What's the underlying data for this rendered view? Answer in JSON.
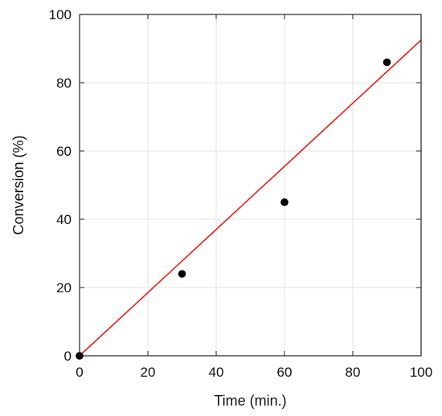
{
  "chart_data": {
    "type": "scatter",
    "xlabel": "Time (min.)",
    "ylabel": "Conversion (%)",
    "xlim": [
      0,
      100
    ],
    "ylim": [
      0,
      100
    ],
    "x_ticks": [
      0,
      20,
      40,
      60,
      80,
      100
    ],
    "y_ticks": [
      0,
      20,
      40,
      60,
      80,
      100
    ],
    "grid": true,
    "series": [
      {
        "type": "scatter",
        "color": "#000000",
        "points": [
          {
            "x": 0,
            "y": 0
          },
          {
            "x": 30,
            "y": 24
          },
          {
            "x": 60,
            "y": 45
          },
          {
            "x": 90,
            "y": 86
          }
        ]
      },
      {
        "type": "line",
        "color": "#e8201c",
        "points": [
          {
            "x": 0,
            "y": 0
          },
          {
            "x": 100,
            "y": 92.5
          }
        ]
      }
    ]
  }
}
